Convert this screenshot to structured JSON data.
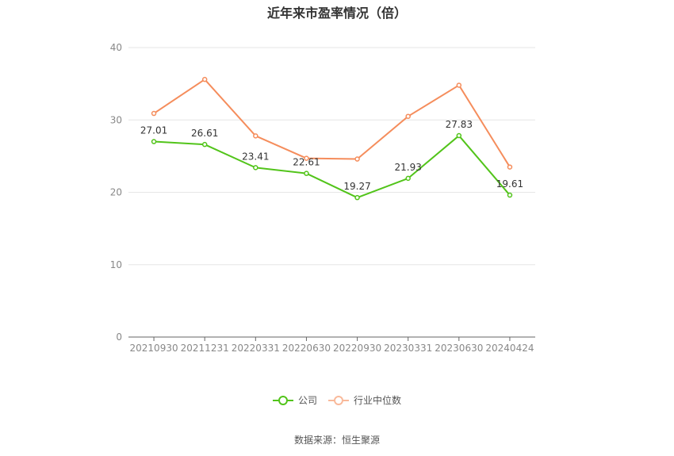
{
  "chart_data": {
    "type": "line",
    "title": "近年来市盈率情况（倍）",
    "categories": [
      "20210930",
      "20211231",
      "20220331",
      "20220630",
      "20220930",
      "20230331",
      "20230630",
      "20240424"
    ],
    "series": [
      {
        "name": "公司",
        "color": "#52c41a",
        "values": [
          27.01,
          26.61,
          23.41,
          22.61,
          19.27,
          21.93,
          27.83,
          19.61
        ],
        "data_labels": [
          "27.01",
          "26.61",
          "23.41",
          "22.61",
          "19.27",
          "21.93",
          "27.83",
          "19.61"
        ]
      },
      {
        "name": "行业中位数",
        "color": "#f58d5c",
        "values": [
          30.9,
          35.6,
          27.8,
          24.7,
          24.6,
          30.5,
          34.8,
          23.5
        ]
      }
    ],
    "ylim": [
      0,
      40
    ],
    "yticks": [
      0,
      10,
      20,
      30,
      40
    ],
    "grid": true,
    "legend_position": "bottom-center"
  },
  "source": "数据来源：恒生聚源"
}
